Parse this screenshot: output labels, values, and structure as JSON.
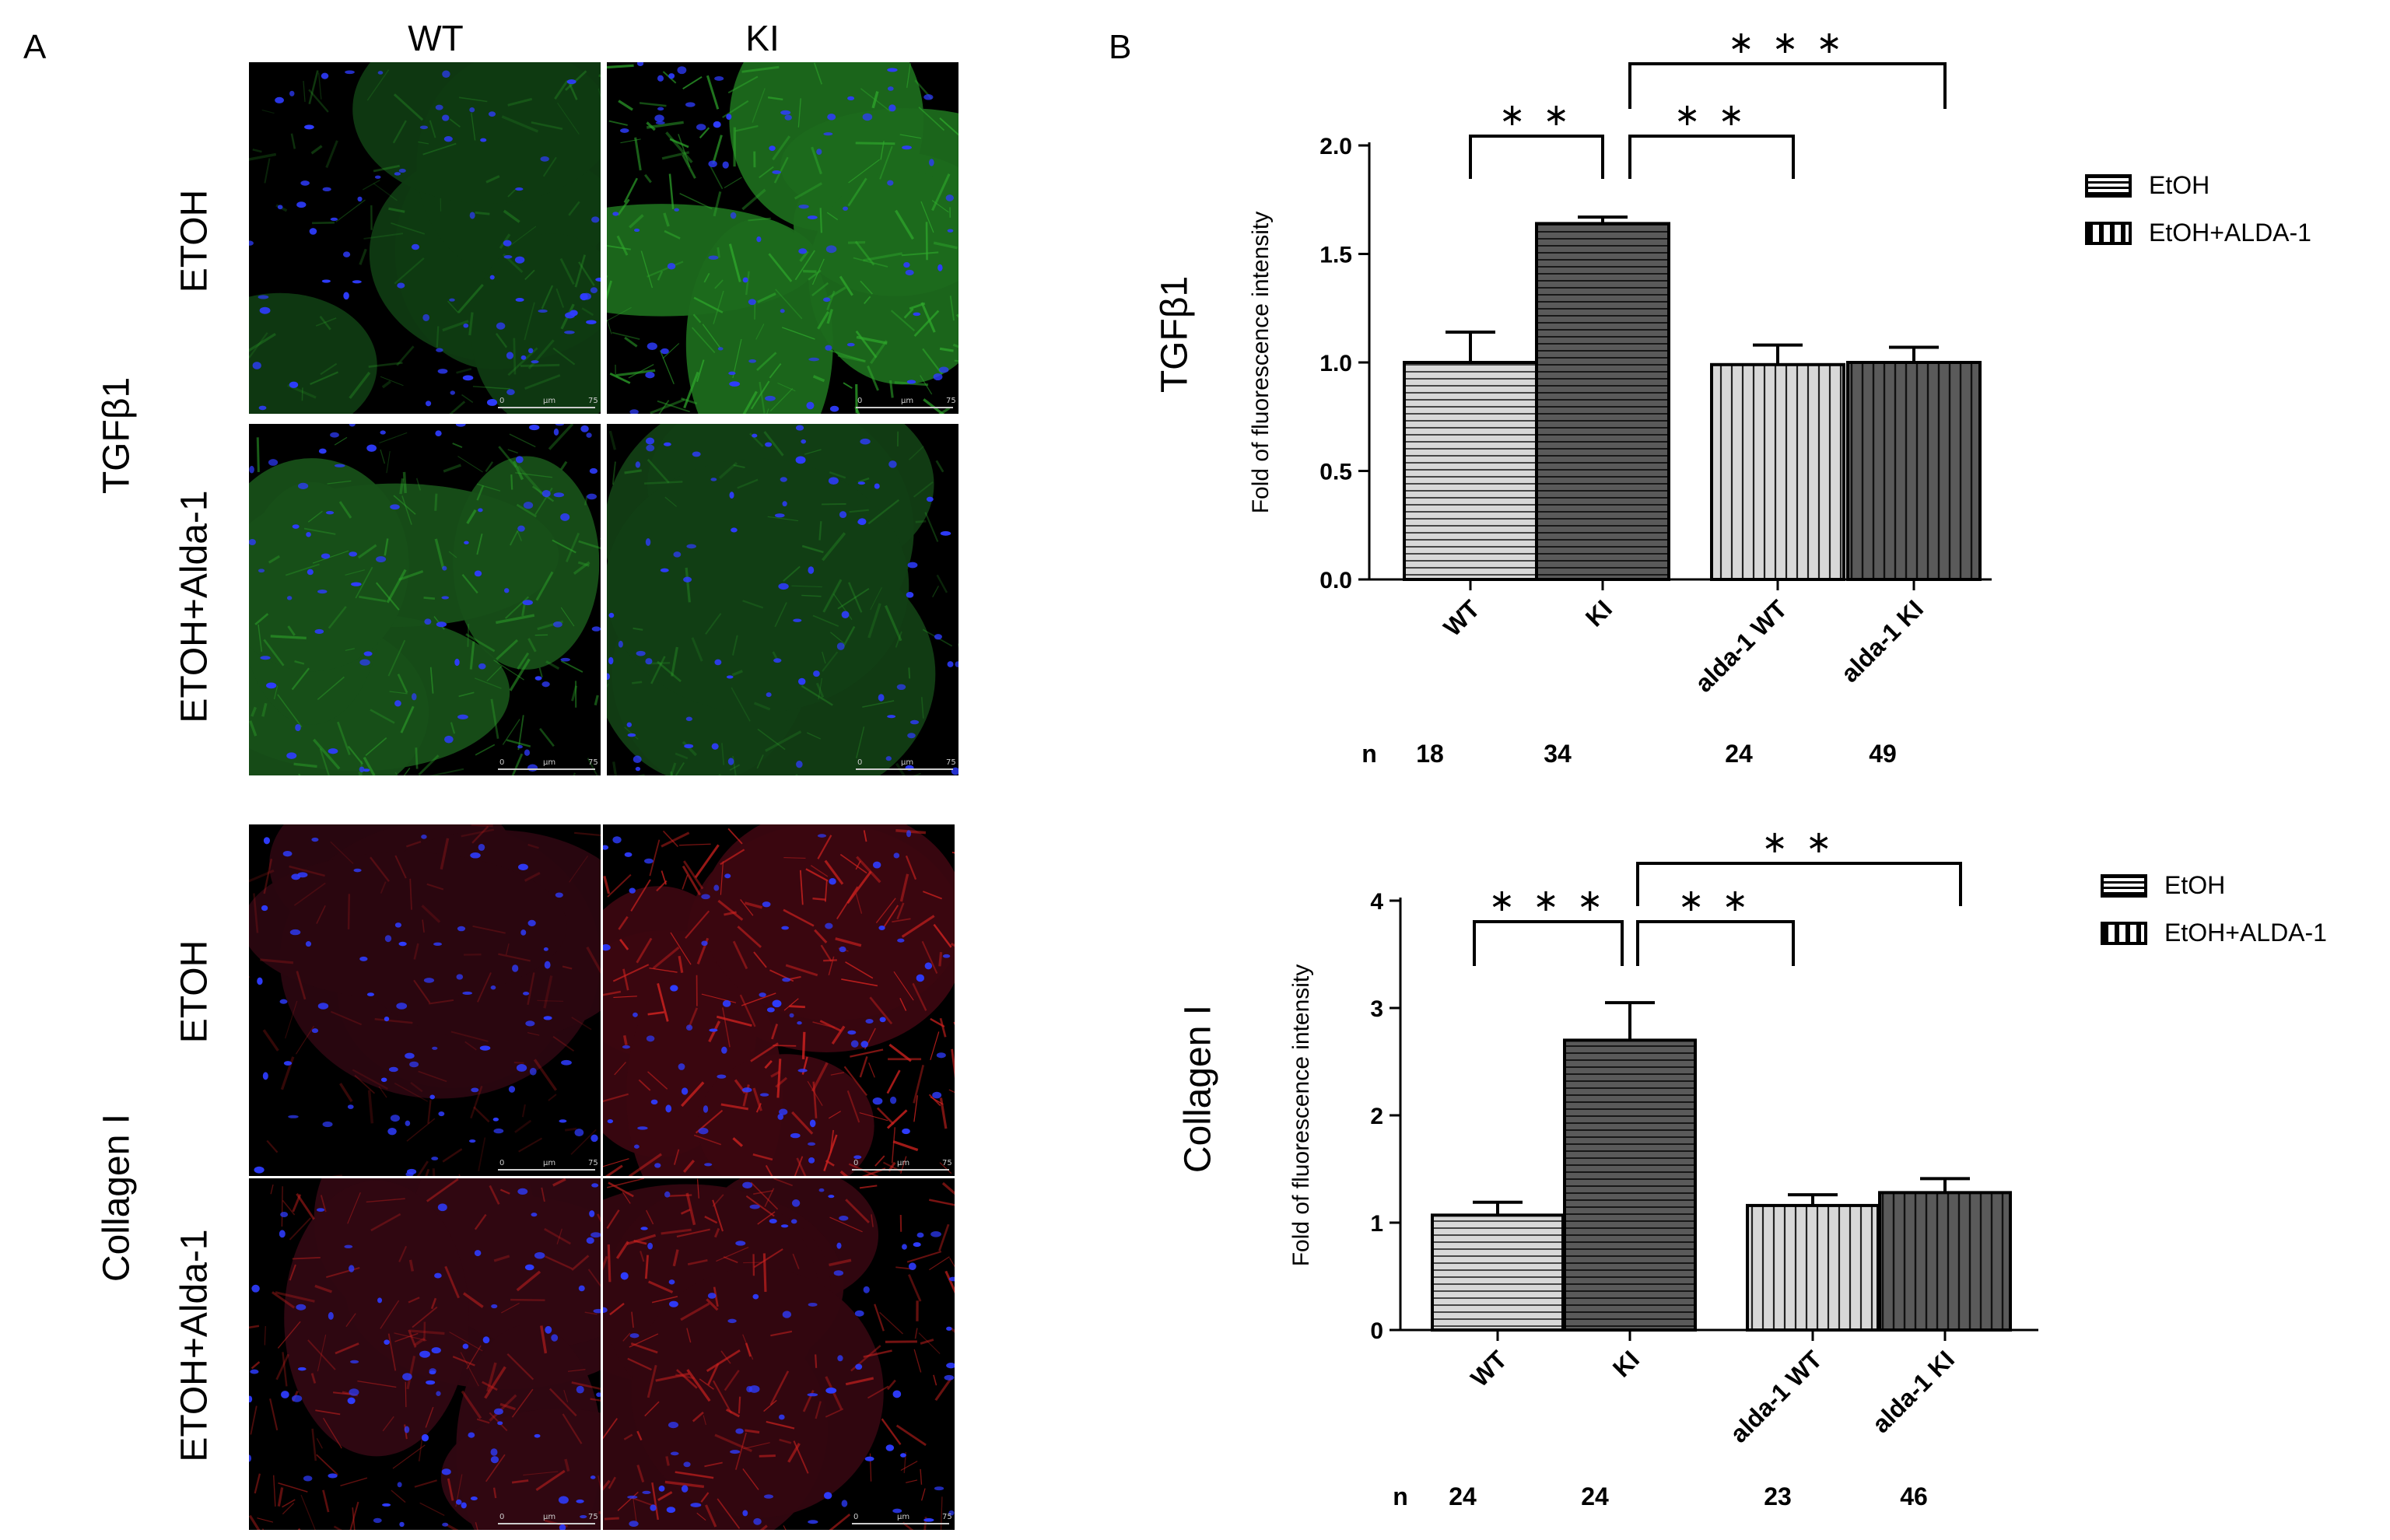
{
  "panel_a": {
    "letter": "A",
    "columns": [
      "WT",
      "KI"
    ],
    "sections": [
      {
        "marker": "TGFβ1",
        "rows": [
          "ETOH",
          "ETOH+Alda-1"
        ],
        "stain": "#2faa2c"
      },
      {
        "marker": "Collagen I",
        "rows": [
          "ETOH",
          "ETOH+Alda-1"
        ],
        "stain": "#d0221f"
      }
    ],
    "scale_bar": {
      "left": "0",
      "unit": "μm",
      "right": "75"
    }
  },
  "panel_b": {
    "letter": "B",
    "legend": {
      "items": [
        "EtOH",
        "EtOH+ALDA-1"
      ]
    },
    "n_label": "n"
  },
  "chart_data": [
    {
      "type": "bar",
      "side_label": "TGFβ1",
      "ylabel": "Fold of  fluorescence intensity",
      "ylim": [
        0,
        2.0
      ],
      "yticks": [
        "0.0",
        "0.5",
        "1.0",
        "1.5",
        "2.0"
      ],
      "categories": [
        "WT",
        "KI",
        "alda-1 WT",
        "alda-1 KI"
      ],
      "values": [
        1.0,
        1.64,
        0.99,
        1.0
      ],
      "errors": [
        0.14,
        0.03,
        0.09,
        0.07
      ],
      "n": [
        "18",
        "34",
        "24",
        "49"
      ],
      "significance": [
        {
          "from": 0,
          "to": 1,
          "label": "* *"
        },
        {
          "from": 1,
          "to": 2,
          "label": "* *"
        },
        {
          "from": 1,
          "to": 3,
          "label": "* * *"
        }
      ]
    },
    {
      "type": "bar",
      "side_label": "Collagen I",
      "ylabel": "Fold of  fluorescence intensity",
      "ylim": [
        0,
        4
      ],
      "yticks": [
        "0",
        "1",
        "2",
        "3",
        "4"
      ],
      "categories": [
        "WT",
        "KI",
        "alda-1 WT",
        "alda-1 KI"
      ],
      "values": [
        1.07,
        2.7,
        1.16,
        1.28
      ],
      "errors": [
        0.12,
        0.35,
        0.1,
        0.13
      ],
      "n": [
        "24",
        "24",
        "23",
        "46"
      ],
      "significance": [
        {
          "from": 0,
          "to": 1,
          "label": "* * *"
        },
        {
          "from": 1,
          "to": 2,
          "label": "* *"
        },
        {
          "from": 1,
          "to": 3,
          "label": "* *"
        }
      ]
    }
  ],
  "colors": {
    "light_bar": "#d8d8d8",
    "dark_bar": "#5a5a5a"
  }
}
